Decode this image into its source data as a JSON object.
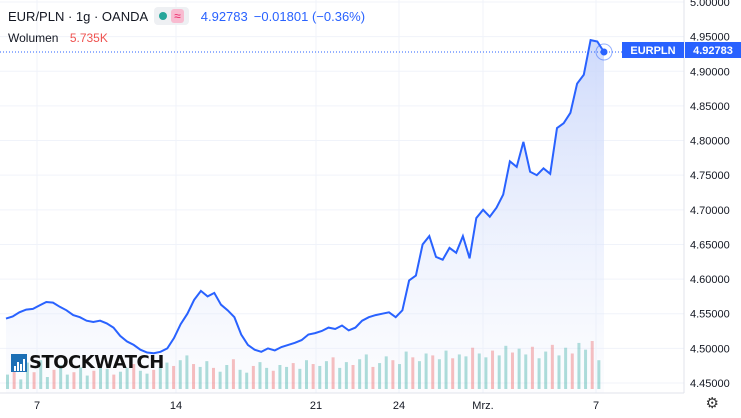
{
  "legend": {
    "symbol": "EUR/PLN · 1g · OANDA",
    "price": "4.92783",
    "change": "−0.01801 (−0.36%)",
    "wave_icon": "≈"
  },
  "volume": {
    "label": "Wolumen",
    "value": "5.735K"
  },
  "price_tag": {
    "name": "EURPLN",
    "value": "4.92783"
  },
  "logo_text": "STOCKWATCH",
  "settings_icon": "gear-icon",
  "colors": {
    "line": "#2962ff",
    "fill_top": "#c9d6fb",
    "vol_up": "#26a69a",
    "vol_down": "#ef5350",
    "dotted": "#2962ff"
  },
  "chart_data": {
    "type": "area",
    "title": "",
    "ylabel": "",
    "ylim": [
      4.44,
      4.96
    ],
    "yticks": [
      "5.00000",
      "4.95000",
      "4.90000",
      "4.85000",
      "4.80000",
      "4.75000",
      "4.70000",
      "4.65000",
      "4.60000",
      "4.55000",
      "4.50000",
      "4.45000"
    ],
    "xticks": [
      "7",
      "14",
      "21",
      "24",
      "Mrz.",
      "7"
    ],
    "series": [
      {
        "values": [
          4.543,
          4.546,
          4.552,
          4.556,
          4.557,
          4.562,
          4.567,
          4.566,
          4.56,
          4.555,
          4.548,
          4.545,
          4.54,
          4.538,
          4.54,
          4.536,
          4.53,
          4.518,
          4.51,
          4.505,
          4.498,
          4.494,
          4.493,
          4.495,
          4.5,
          4.515,
          4.535,
          4.55,
          4.57,
          4.583,
          4.575,
          4.58,
          4.563,
          4.555,
          4.545,
          4.52,
          4.505,
          4.498,
          4.495,
          4.5,
          4.497,
          4.502,
          4.505,
          4.508,
          4.512,
          4.52,
          4.522,
          4.525,
          4.53,
          4.528,
          4.533,
          4.526,
          4.53,
          4.54,
          4.545,
          4.548,
          4.55,
          4.552,
          4.545,
          4.555,
          4.598,
          4.605,
          4.65,
          4.662,
          4.632,
          4.628,
          4.645,
          4.638,
          4.662,
          4.63,
          4.688,
          4.7,
          4.69,
          4.703,
          4.722,
          4.77,
          4.762,
          4.798,
          4.755,
          4.75,
          4.76,
          4.752,
          4.818,
          4.825,
          4.84,
          4.882,
          4.895,
          4.945,
          4.943,
          4.92783
        ]
      }
    ],
    "volume": [
      30,
      45,
      20,
      55,
      35,
      60,
      25,
      40,
      50,
      30,
      35,
      45,
      28,
      38,
      50,
      42,
      30,
      36,
      44,
      52,
      38,
      32,
      40,
      46,
      55,
      48,
      60,
      70,
      52,
      46,
      58,
      44,
      36,
      50,
      62,
      40,
      34,
      48,
      56,
      44,
      38,
      50,
      46,
      54,
      42,
      60,
      52,
      48,
      58,
      66,
      44,
      56,
      50,
      62,
      72,
      46,
      54,
      68,
      60,
      52,
      78,
      66,
      58,
      74,
      70,
      62,
      80,
      64,
      72,
      68,
      86,
      74,
      66,
      80,
      70,
      90,
      76,
      84,
      72,
      88,
      64,
      78,
      92,
      70,
      86,
      74,
      96,
      82,
      100,
      60
    ]
  }
}
